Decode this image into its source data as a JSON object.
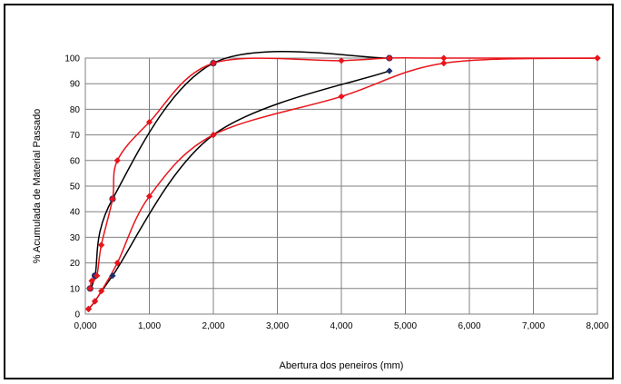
{
  "chart_data": {
    "type": "line",
    "title": "",
    "xlabel": "Abertura dos peneiros (mm)",
    "ylabel": "% Acumulada de Material Passado",
    "xlim": [
      0,
      8
    ],
    "ylim": [
      0,
      100
    ],
    "x_ticks": [
      "0,000",
      "1,000",
      "2,000",
      "3,000",
      "4,000",
      "5,000",
      "6,000",
      "7,000",
      "8,000"
    ],
    "y_ticks": [
      "0",
      "10",
      "20",
      "30",
      "40",
      "50",
      "60",
      "70",
      "80",
      "90",
      "100"
    ],
    "grid": true,
    "legend": "none",
    "series": [
      {
        "color": "#1f2d6b",
        "line_color": "#000000",
        "marker": "circle",
        "points": [
          [
            0.075,
            10
          ],
          [
            0.15,
            15
          ],
          [
            0.425,
            45
          ],
          [
            2.0,
            98
          ],
          [
            4.75,
            100
          ]
        ]
      },
      {
        "color": "#e8141b",
        "line_color": "#e8141b",
        "marker": "diamond",
        "points": [
          [
            0.075,
            10
          ],
          [
            0.1,
            13
          ],
          [
            0.18,
            15
          ],
          [
            0.25,
            27
          ],
          [
            0.425,
            45
          ],
          [
            0.5,
            60
          ],
          [
            1.0,
            75
          ],
          [
            2.0,
            98
          ],
          [
            4.0,
            99
          ],
          [
            4.75,
            100
          ],
          [
            5.6,
            100
          ],
          [
            8.0,
            100
          ]
        ]
      },
      {
        "color": "#1f2d6b",
        "line_color": "#000000",
        "marker": "diamond",
        "points": [
          [
            0.05,
            2
          ],
          [
            0.15,
            5
          ],
          [
            0.425,
            15
          ],
          [
            2.0,
            70
          ],
          [
            4.75,
            95
          ]
        ]
      },
      {
        "color": "#e8141b",
        "line_color": "#e8141b",
        "marker": "diamond",
        "points": [
          [
            0.05,
            2
          ],
          [
            0.15,
            5
          ],
          [
            0.25,
            9
          ],
          [
            0.5,
            20
          ],
          [
            1.0,
            46
          ],
          [
            2.0,
            70
          ],
          [
            4.0,
            85
          ],
          [
            5.6,
            98
          ],
          [
            8.0,
            100
          ]
        ]
      }
    ]
  }
}
